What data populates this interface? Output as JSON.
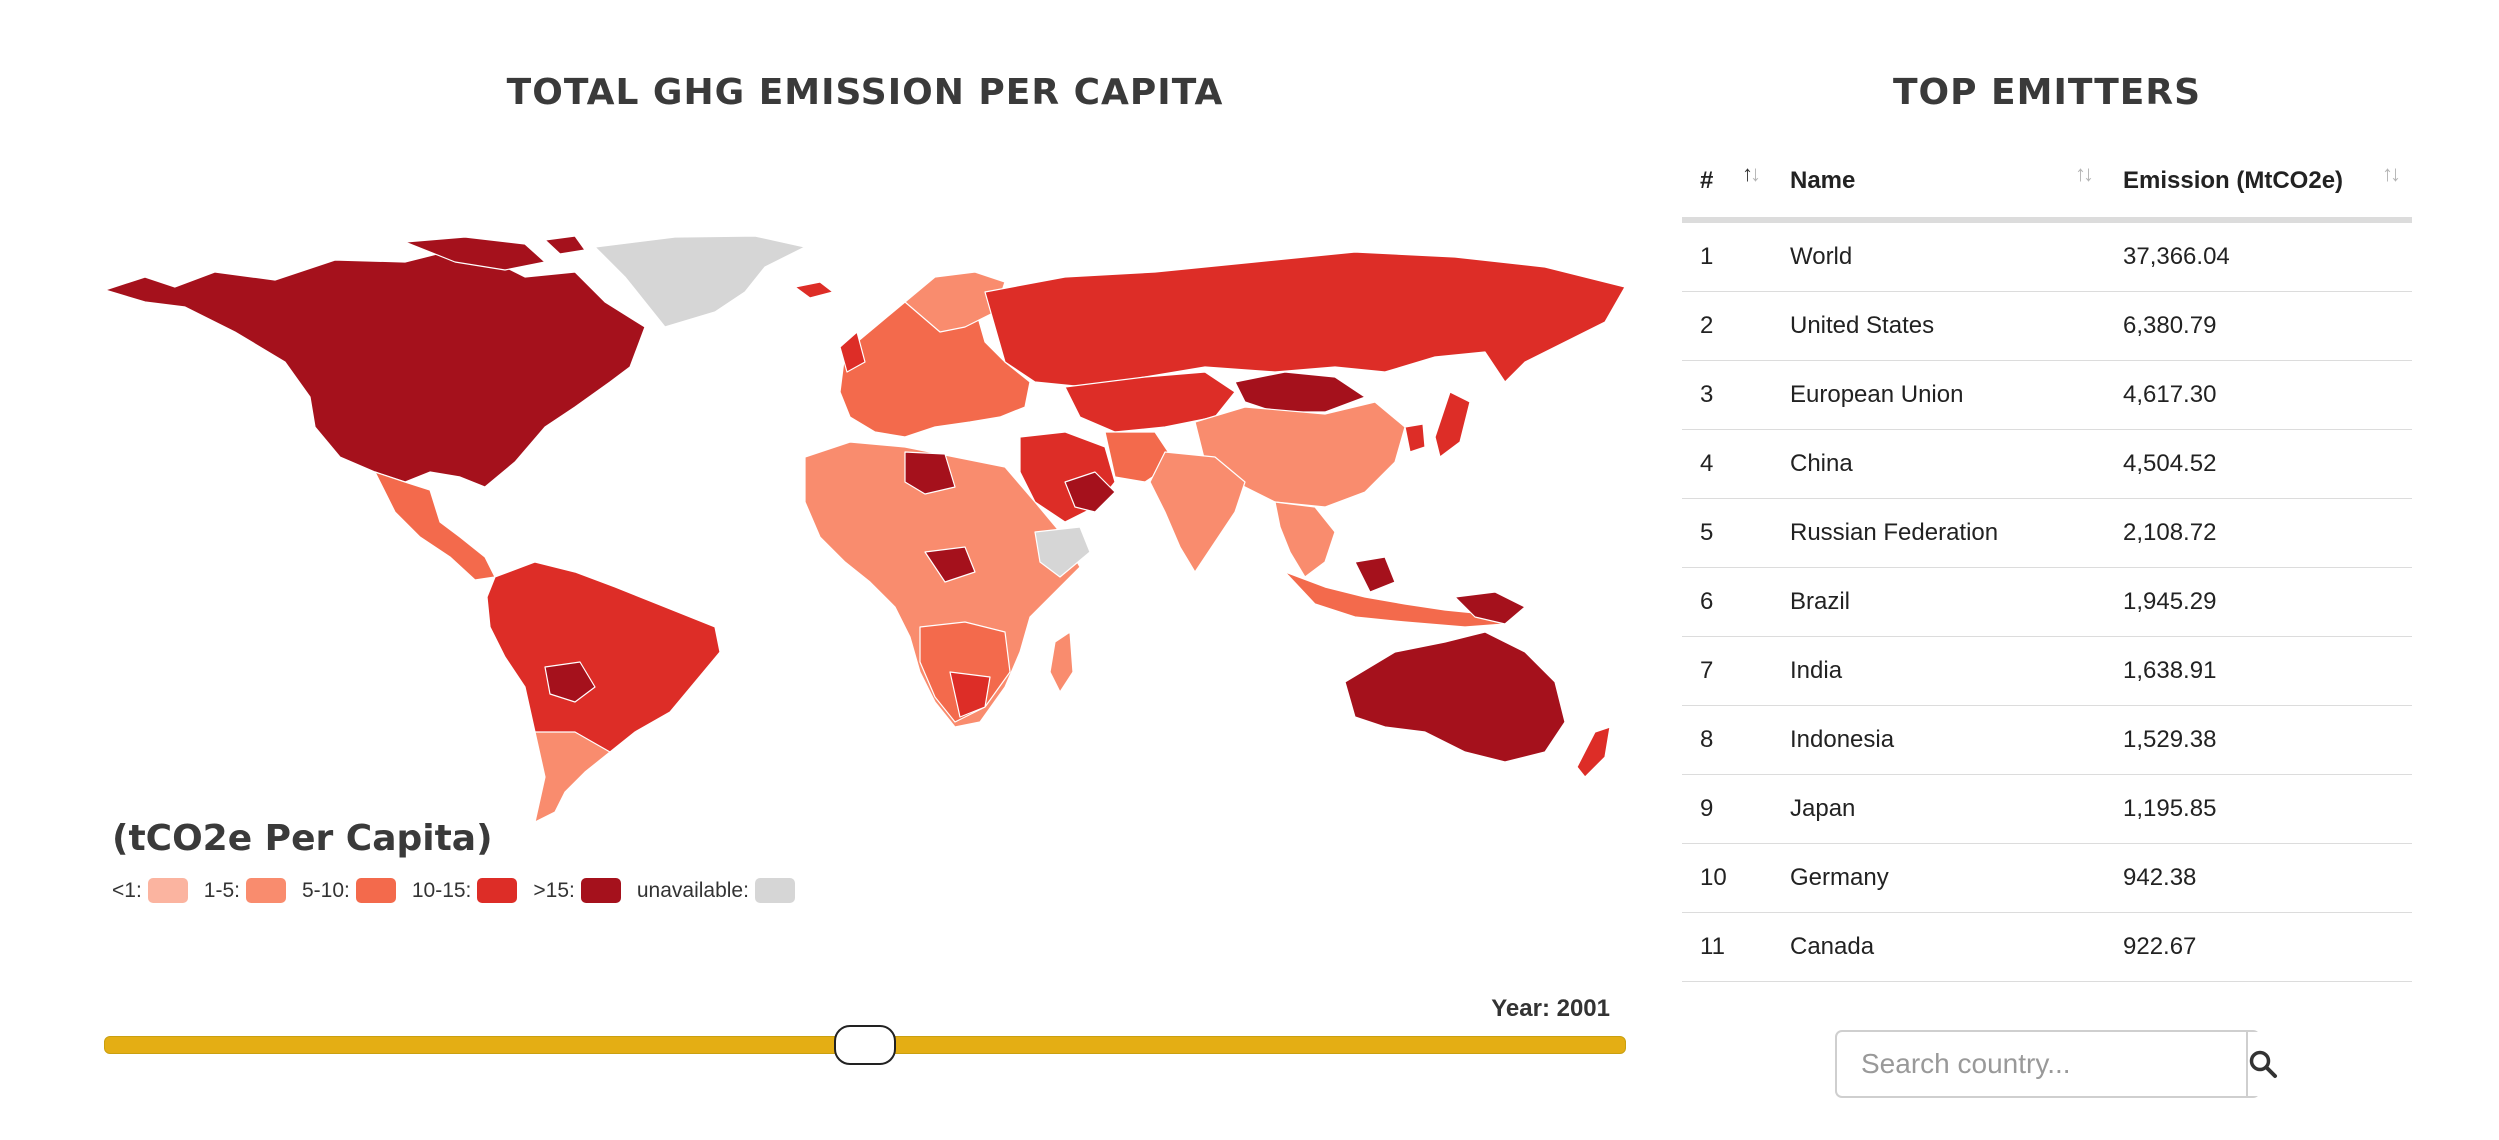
{
  "map_panel": {
    "title": "TOTAL GHG EMISSION PER CAPITA",
    "legend_title": "(tCO2e Per Capita)",
    "legend": [
      {
        "label": "<1:",
        "color": "#fbb4a0"
      },
      {
        "label": "1-5:",
        "color": "#f98c6e"
      },
      {
        "label": "5-10:",
        "color": "#f36a4c"
      },
      {
        "label": "10-15:",
        "color": "#dd2d27"
      },
      {
        "label": ">15:",
        "color": "#a5111c"
      },
      {
        "label": "unavailable:",
        "color": "#d6d6d6"
      }
    ],
    "year_label": "Year: 2001",
    "slider_color": "#e4ae14"
  },
  "table_panel": {
    "title": "TOP EMITTERS",
    "columns": [
      "#",
      "Name",
      "Emission (MtCO2e)"
    ],
    "rows": [
      [
        "1",
        "World",
        "37,366.04"
      ],
      [
        "2",
        "United States",
        "6,380.79"
      ],
      [
        "3",
        "European Union",
        "4,617.30"
      ],
      [
        "4",
        "China",
        "4,504.52"
      ],
      [
        "5",
        "Russian Federation",
        "2,108.72"
      ],
      [
        "6",
        "Brazil",
        "1,945.29"
      ],
      [
        "7",
        "India",
        "1,638.91"
      ],
      [
        "8",
        "Indonesia",
        "1,529.38"
      ],
      [
        "9",
        "Japan",
        "1,195.85"
      ],
      [
        "10",
        "Germany",
        "942.38"
      ],
      [
        "11",
        "Canada",
        "922.67"
      ]
    ]
  },
  "search": {
    "placeholder": "Search country...",
    "icon": "search-icon"
  }
}
